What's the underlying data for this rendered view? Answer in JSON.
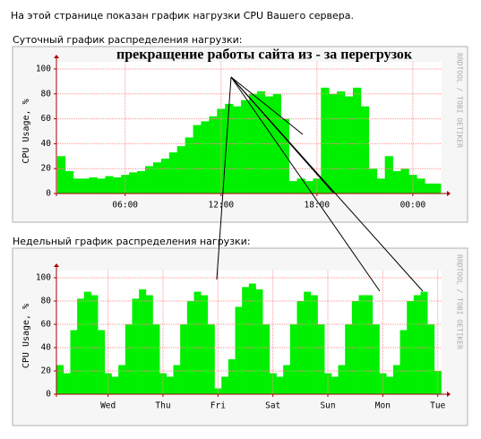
{
  "intro": "На этой странице показан график нагрузки CPU Вашего сервера.",
  "daily_heading": "Суточный график распределения нагрузки:",
  "weekly_heading": "Недельный график распределения нагрузки:",
  "annotation": "прекращение работы сайта из - за перегрузок",
  "chart_data": [
    {
      "type": "bar",
      "y_label": "CPU Usage, %",
      "watermark": "RRDTOOL / TOBI OETIKER",
      "color": "#00f000",
      "grid": true,
      "x": [
        2.0,
        2.5,
        3.0,
        3.5,
        4.0,
        4.5,
        5.0,
        5.5,
        6.0,
        6.5,
        7.0,
        7.5,
        8.0,
        8.5,
        9.0,
        9.5,
        10.0,
        10.5,
        11.0,
        11.5,
        12.0,
        12.5,
        13.0,
        13.5,
        14.0,
        14.5,
        15.0,
        15.5,
        16.0,
        16.5,
        17.0,
        17.5,
        18.0,
        18.5,
        19.0,
        19.5,
        20.0,
        20.5,
        21.0,
        21.5,
        22.0,
        22.5,
        23.0,
        23.5,
        24.0,
        24.5,
        25.0,
        25.5
      ],
      "values": [
        30,
        18,
        12,
        12,
        13,
        12,
        14,
        13,
        15,
        17,
        18,
        22,
        25,
        28,
        33,
        38,
        45,
        55,
        58,
        62,
        68,
        72,
        70,
        75,
        80,
        82,
        78,
        80,
        60,
        10,
        12,
        10,
        12,
        85,
        80,
        82,
        78,
        85,
        70,
        20,
        12,
        30,
        18,
        20,
        15,
        12,
        8,
        8
      ],
      "xlim": [
        1.7,
        25.8
      ],
      "ylim": [
        0,
        100
      ],
      "xticks": [
        {
          "value": 6,
          "label": "06:00"
        },
        {
          "value": 12,
          "label": "12:00"
        },
        {
          "value": 18,
          "label": "18:00"
        },
        {
          "value": 24,
          "label": "00:00"
        }
      ],
      "yticks": [
        0,
        20,
        40,
        60,
        80,
        100
      ]
    },
    {
      "type": "bar",
      "y_label": "CPU Usage, %",
      "watermark": "RRDTOOL / TOBI OETIKER",
      "color": "#00f000",
      "grid": true,
      "x": [
        0.125,
        0.25,
        0.375,
        0.5,
        0.625,
        0.75,
        0.875,
        1.0,
        1.125,
        1.25,
        1.375,
        1.5,
        1.625,
        1.75,
        1.875,
        2.0,
        2.125,
        2.25,
        2.375,
        2.5,
        2.625,
        2.75,
        2.875,
        3.0,
        3.125,
        3.25,
        3.375,
        3.5,
        3.625,
        3.75,
        3.875,
        4.0,
        4.125,
        4.25,
        4.375,
        4.5,
        4.625,
        4.75,
        4.875,
        5.0,
        5.125,
        5.25,
        5.375,
        5.5,
        5.625,
        5.75,
        5.875,
        6.0,
        6.125,
        6.25,
        6.375,
        6.5,
        6.625,
        6.75,
        6.875,
        7.0
      ],
      "values": [
        25,
        18,
        55,
        82,
        88,
        85,
        55,
        18,
        15,
        25,
        60,
        82,
        90,
        85,
        60,
        18,
        15,
        25,
        60,
        80,
        88,
        85,
        60,
        5,
        15,
        30,
        75,
        92,
        95,
        90,
        60,
        18,
        15,
        25,
        60,
        80,
        88,
        85,
        60,
        18,
        15,
        25,
        60,
        80,
        85,
        85,
        60,
        18,
        15,
        25,
        55,
        80,
        85,
        88,
        60,
        20
      ],
      "xlim": [
        0.06,
        7.07
      ],
      "ylim": [
        0,
        100
      ],
      "xticks": [
        {
          "value": 1,
          "label": "Wed"
        },
        {
          "value": 2,
          "label": "Thu"
        },
        {
          "value": 3,
          "label": "Fri"
        },
        {
          "value": 4,
          "label": "Sat"
        },
        {
          "value": 5,
          "label": "Sun"
        },
        {
          "value": 6,
          "label": "Mon"
        },
        {
          "value": 7,
          "label": "Tue"
        }
      ],
      "yticks": [
        0,
        20,
        40,
        60,
        80,
        100
      ]
    }
  ]
}
